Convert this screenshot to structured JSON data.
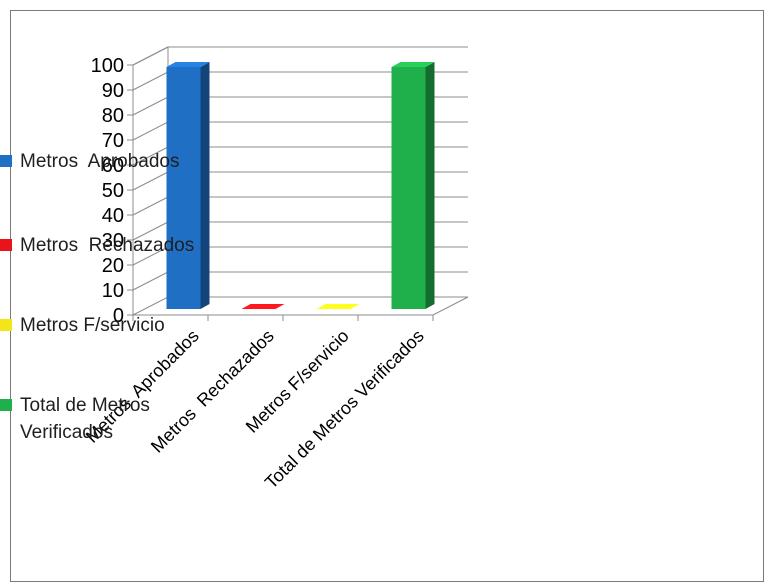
{
  "chart_data": {
    "type": "bar",
    "categories": [
      "Metros  Aprobados",
      "Metros  Rechazados",
      "Metros F/servicio",
      "Total de Metros Verificados"
    ],
    "series": [
      {
        "name": "Metros  Aprobados",
        "color": "#1f6fc5",
        "values": [
          100,
          null,
          null,
          null
        ]
      },
      {
        "name": "Metros  Rechazados",
        "color": "#e8141a",
        "values": [
          null,
          0,
          null,
          null
        ]
      },
      {
        "name": "Metros F/servicio",
        "color": "#f2e61a",
        "values": [
          null,
          null,
          0,
          null
        ]
      },
      {
        "name": "Total de Metros Verificados",
        "color": "#20b04b",
        "values": [
          null,
          null,
          null,
          100
        ]
      }
    ],
    "ylim": [
      0,
      100
    ],
    "yticks": [
      "0",
      "10",
      "20",
      "30",
      "40",
      "50",
      "60",
      "70",
      "80",
      "90",
      "100"
    ],
    "grid": true,
    "legend_position": "right",
    "three_d": true
  },
  "legend": [
    {
      "label": "Metros  Aprobados",
      "color": "#1f6fc5"
    },
    {
      "label": "Metros  Rechazados",
      "color": "#e8141a"
    },
    {
      "label": "Metros F/servicio",
      "color": "#f2e61a"
    },
    {
      "label": "Total de Metros\nVerificados",
      "color": "#20b04b"
    }
  ]
}
